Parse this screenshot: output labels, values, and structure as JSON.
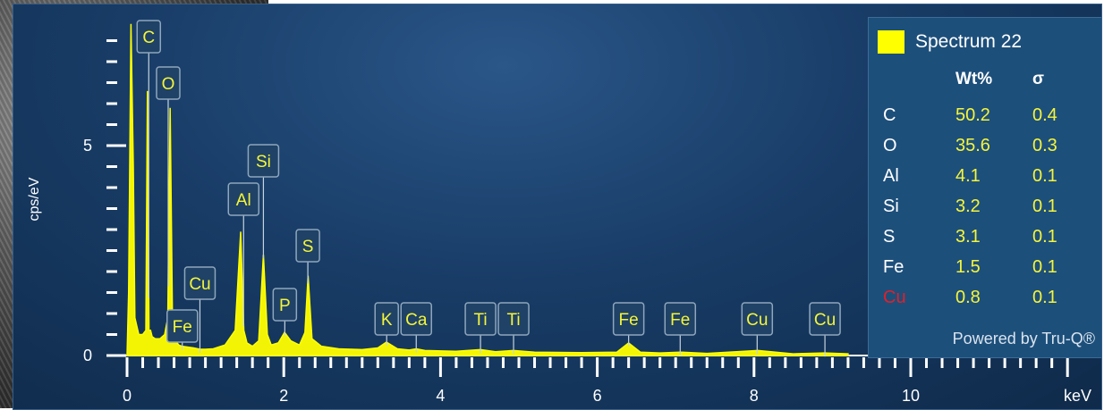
{
  "chart_data": {
    "type": "line",
    "title": "",
    "xlabel": "keV",
    "ylabel": "cps/eV",
    "xlim": [
      0,
      12
    ],
    "ylim": [
      0,
      8
    ],
    "x_ticks": [
      0,
      2,
      4,
      6,
      8,
      10
    ],
    "y_ticks": [
      0,
      5
    ],
    "series": [
      {
        "name": "Spectrum 22",
        "color": "#ffff00",
        "x": [
          0.0,
          0.02,
          0.05,
          0.08,
          0.1,
          0.15,
          0.2,
          0.24,
          0.26,
          0.28,
          0.3,
          0.32,
          0.36,
          0.42,
          0.48,
          0.52,
          0.55,
          0.58,
          0.62,
          0.66,
          0.7,
          0.78,
          0.85,
          0.93,
          1.0,
          1.1,
          1.25,
          1.38,
          1.45,
          1.49,
          1.53,
          1.6,
          1.68,
          1.74,
          1.79,
          1.84,
          1.93,
          2.01,
          2.09,
          2.2,
          2.27,
          2.31,
          2.36,
          2.48,
          2.7,
          3.0,
          3.2,
          3.31,
          3.45,
          3.6,
          3.69,
          3.8,
          4.2,
          4.51,
          4.7,
          4.93,
          5.2,
          5.8,
          6.25,
          6.4,
          6.55,
          6.8,
          7.06,
          7.4,
          8.05,
          8.5,
          8.9,
          9.2
        ],
        "y": [
          0,
          1.5,
          7.9,
          4.5,
          0.9,
          0.5,
          0.5,
          0.6,
          6.3,
          0.6,
          0.6,
          0.45,
          0.4,
          0.4,
          0.5,
          0.9,
          5.9,
          0.8,
          0.35,
          0.25,
          0.22,
          0.2,
          0.18,
          0.15,
          0.15,
          0.16,
          0.25,
          0.6,
          2.95,
          0.6,
          0.3,
          0.22,
          0.35,
          2.4,
          0.5,
          0.25,
          0.3,
          0.55,
          0.35,
          0.25,
          0.55,
          1.9,
          0.4,
          0.22,
          0.16,
          0.14,
          0.18,
          0.32,
          0.16,
          0.13,
          0.16,
          0.12,
          0.1,
          0.14,
          0.09,
          0.12,
          0.08,
          0.07,
          0.08,
          0.3,
          0.08,
          0.06,
          0.08,
          0.05,
          0.12,
          0.04,
          0.06,
          0.04
        ]
      }
    ],
    "peak_labels": [
      {
        "label": "C",
        "x": 0.277
      },
      {
        "label": "O",
        "x": 0.525
      },
      {
        "label": "Fe",
        "x": 0.705
      },
      {
        "label": "Cu",
        "x": 0.93
      },
      {
        "label": "Al",
        "x": 1.487
      },
      {
        "label": "Si",
        "x": 1.74
      },
      {
        "label": "P",
        "x": 2.013
      },
      {
        "label": "S",
        "x": 2.307
      },
      {
        "label": "K",
        "x": 3.313
      },
      {
        "label": "Ca",
        "x": 3.69
      },
      {
        "label": "Ti",
        "x": 4.51
      },
      {
        "label": "Ti",
        "x": 4.932
      },
      {
        "label": "Fe",
        "x": 6.4
      },
      {
        "label": "Fe",
        "x": 7.058
      },
      {
        "label": "Cu",
        "x": 8.04
      },
      {
        "label": "Cu",
        "x": 8.905
      }
    ]
  },
  "legend": {
    "spectrum_name": "Spectrum 22",
    "swatch_color": "#ffff00",
    "col_wt": "Wt%",
    "col_sigma": "σ",
    "rows": [
      {
        "element": "C",
        "wt": "50.2",
        "sigma": "0.4",
        "highlight": false
      },
      {
        "element": "O",
        "wt": "35.6",
        "sigma": "0.3",
        "highlight": false
      },
      {
        "element": "Al",
        "wt": "4.1",
        "sigma": "0.1",
        "highlight": false
      },
      {
        "element": "Si",
        "wt": "3.2",
        "sigma": "0.1",
        "highlight": false
      },
      {
        "element": "S",
        "wt": "3.1",
        "sigma": "0.1",
        "highlight": false
      },
      {
        "element": "Fe",
        "wt": "1.5",
        "sigma": "0.1",
        "highlight": false
      },
      {
        "element": "Cu",
        "wt": "0.8",
        "sigma": "0.1",
        "highlight": true
      }
    ],
    "powered_by": "Powered by Tru-Q®"
  }
}
